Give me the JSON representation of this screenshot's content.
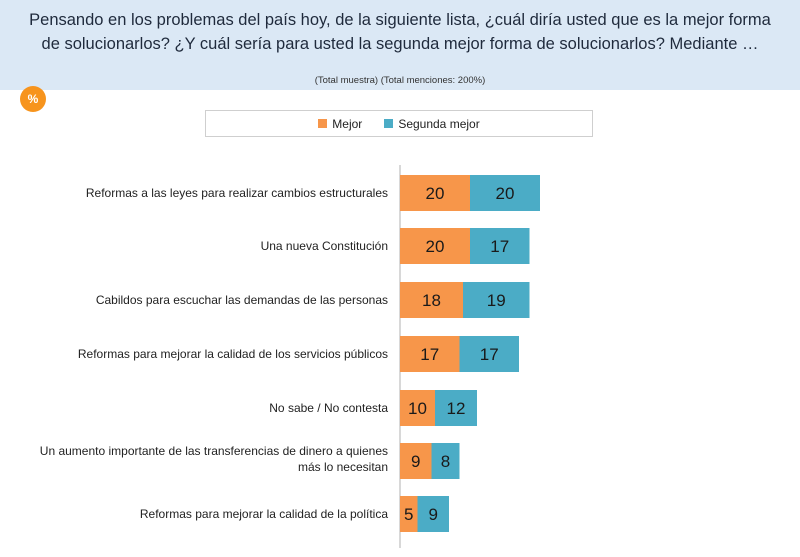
{
  "header": {
    "question_line1": "Pensando en los problemas del país hoy, de la siguiente lista, ¿cuál diría usted que es la mejor forma",
    "question_line2": "de solucionarlos? ¿Y cuál sería para usted la segunda mejor forma de solucionarlos? Mediante …",
    "subtitle": "(Total muestra) (Total menciones: 200%)",
    "badge": "%"
  },
  "colors": {
    "mejor": "#f7964a",
    "segunda": "#4bacc6",
    "header_bg": "#dbe8f5",
    "badge": "#f7941d"
  },
  "chart_data": {
    "type": "bar",
    "orientation": "horizontal",
    "stacked": true,
    "categories": [
      [
        "Reformas a las leyes para realizar cambios estructurales"
      ],
      [
        "Una nueva Constitución"
      ],
      [
        "Cabildos para escuchar las demandas de las personas"
      ],
      [
        "Reformas para mejorar la calidad de los servicios públicos"
      ],
      [
        "No sabe / No contesta"
      ],
      [
        "Un aumento importante de las transferencias de dinero a quienes",
        "más lo necesitan"
      ],
      [
        "Reformas para mejorar la calidad de la política"
      ]
    ],
    "series": [
      {
        "name": "Mejor",
        "values": [
          20,
          20,
          18,
          17,
          10,
          9,
          5
        ]
      },
      {
        "name": "Segunda mejor",
        "values": [
          20,
          17,
          19,
          17,
          12,
          8,
          9
        ]
      }
    ],
    "legend_position": "top"
  }
}
